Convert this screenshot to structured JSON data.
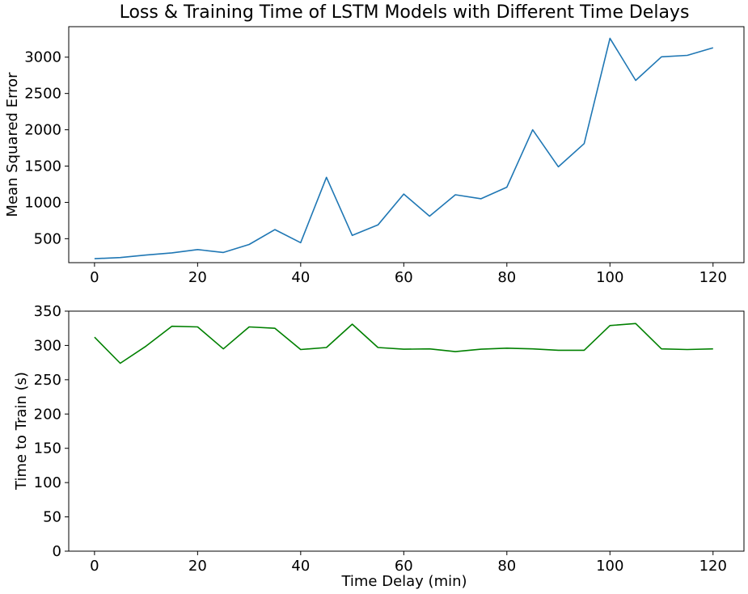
{
  "chart_data": [
    {
      "type": "line",
      "title": "Loss & Training Time of LSTM Models with Different Time Delays",
      "xlabel": "",
      "ylabel": "Mean Squared Error",
      "xlim": [
        -5,
        126
      ],
      "ylim": [
        170,
        3420
      ],
      "xticks": [
        0,
        20,
        40,
        60,
        80,
        100,
        120
      ],
      "yticks": [
        500,
        1000,
        1500,
        2000,
        2500,
        3000
      ],
      "grid": false,
      "color": "#1f77b4",
      "x": [
        0,
        5,
        10,
        15,
        20,
        25,
        30,
        35,
        40,
        45,
        50,
        55,
        60,
        65,
        70,
        75,
        80,
        85,
        90,
        95,
        100,
        105,
        110,
        115,
        120
      ],
      "series": [
        {
          "values": [
            225,
            240,
            275,
            305,
            350,
            310,
            420,
            625,
            445,
            1345,
            545,
            690,
            1115,
            810,
            1105,
            1050,
            1210,
            2000,
            1490,
            1810,
            3260,
            2680,
            3005,
            3025,
            3130
          ]
        }
      ]
    },
    {
      "type": "line",
      "title": "",
      "xlabel": "Time Delay (min)",
      "ylabel": "Time to Train (s)",
      "xlim": [
        -5,
        126
      ],
      "ylim": [
        0,
        350
      ],
      "xticks": [
        0,
        20,
        40,
        60,
        80,
        100,
        120
      ],
      "yticks": [
        0,
        50,
        100,
        150,
        200,
        250,
        300,
        350
      ],
      "grid": false,
      "color": "#008000",
      "x": [
        0,
        5,
        10,
        15,
        20,
        25,
        30,
        35,
        40,
        45,
        50,
        55,
        60,
        65,
        70,
        75,
        80,
        85,
        90,
        95,
        100,
        105,
        110,
        115,
        120
      ],
      "series": [
        {
          "values": [
            312,
            274,
            299,
            328,
            327,
            295,
            327,
            325,
            294,
            297,
            331,
            297,
            294.5,
            295,
            291,
            294.5,
            296,
            295,
            293,
            293,
            329,
            332,
            295,
            294,
            295
          ]
        }
      ]
    }
  ]
}
